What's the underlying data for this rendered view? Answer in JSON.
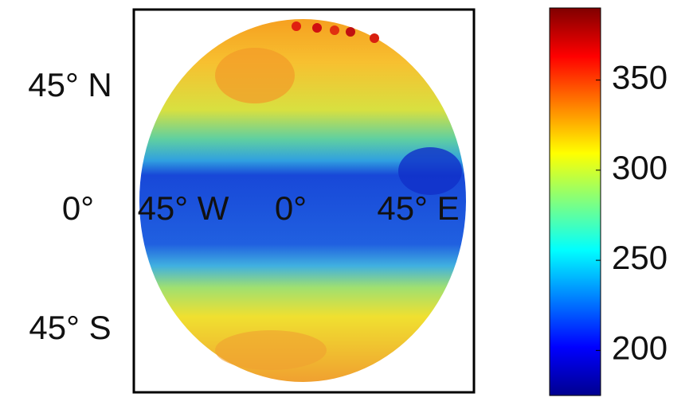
{
  "chart_data": {
    "type": "map",
    "latitude_labels": [
      "45° N",
      "0°",
      "45° S"
    ],
    "longitude_labels": [
      "45° W",
      "0°",
      "45° E"
    ],
    "colorbar": {
      "lim": [
        175,
        390
      ],
      "ticks": [
        200,
        250,
        300,
        350
      ],
      "colormap": "jet"
    }
  }
}
